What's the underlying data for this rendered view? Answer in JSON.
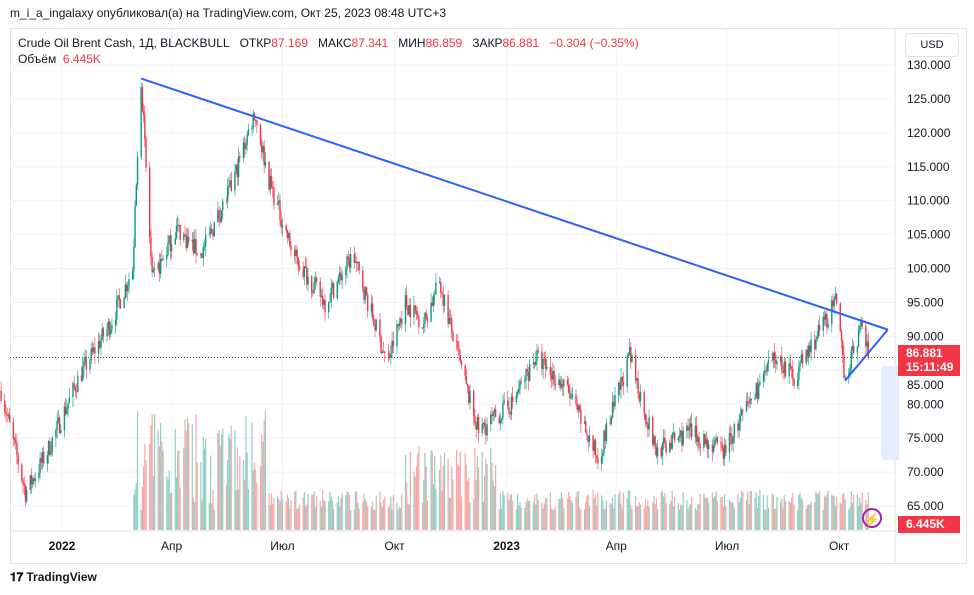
{
  "header": {
    "published": "m_i_a_ingalaxy опубликовал(а) на TradingView.com, Окт 25, 2023 08:48 UTC+3"
  },
  "legend": {
    "symbol": "Crude Oil Brent Cash, 1Д, BLACKBULL",
    "open_label": "ОТКР",
    "open": "87.169",
    "high_label": "МАКС",
    "high": "87.341",
    "low_label": "МИН",
    "low": "86.859",
    "close_label": "ЗАКР",
    "close": "86.881",
    "change": "−0.304 (−0.35%)",
    "volume_label": "Объём",
    "volume": "6.445K"
  },
  "currency": "USD",
  "price_label": {
    "price": "86.881",
    "countdown": "15:11:49"
  },
  "volume_label": "6.445K",
  "footer": {
    "brand": "TradingView"
  },
  "colors": {
    "up": "#089981",
    "down": "#f23645",
    "trend": "#2962ff",
    "vol_up": "#8fd0c5",
    "vol_down": "#f7a9a7"
  },
  "chart_data": {
    "type": "candlestick",
    "title": "Crude Oil Brent Cash, 1Д, BLACKBULL",
    "y_ticks": [
      "130.000",
      "125.000",
      "120.000",
      "115.000",
      "110.000",
      "105.000",
      "100.000",
      "95.000",
      "90.000",
      "85.000",
      "80.000",
      "75.000",
      "70.000",
      "65.000"
    ],
    "y_values": [
      130,
      125,
      120,
      115,
      110,
      105,
      100,
      95,
      90,
      85,
      80,
      75,
      70,
      65
    ],
    "ylim": [
      62.5,
      135
    ],
    "x_ticks": [
      {
        "label": "2022",
        "date": "2022-01-01"
      },
      {
        "label": "Апр",
        "date": "2022-04-01"
      },
      {
        "label": "Июл",
        "date": "2022-07-01"
      },
      {
        "label": "Окт",
        "date": "2022-10-01"
      },
      {
        "label": "2023",
        "date": "2023-01-01"
      },
      {
        "label": "Апр",
        "date": "2023-04-01"
      },
      {
        "label": "Июл",
        "date": "2023-07-01"
      },
      {
        "label": "Окт",
        "date": "2023-10-01"
      }
    ],
    "close_anchors": [
      [
        "2021-11-12",
        82
      ],
      [
        "2021-12-02",
        67
      ],
      [
        "2021-12-20",
        73
      ],
      [
        "2022-01-15",
        84
      ],
      [
        "2022-02-10",
        92
      ],
      [
        "2022-02-28",
        100
      ],
      [
        "2022-03-07",
        128
      ],
      [
        "2022-03-16",
        98
      ],
      [
        "2022-04-05",
        106
      ],
      [
        "2022-04-25",
        102
      ],
      [
        "2022-05-20",
        112
      ],
      [
        "2022-06-08",
        123
      ],
      [
        "2022-06-20",
        113
      ],
      [
        "2022-07-10",
        102
      ],
      [
        "2022-08-05",
        95
      ],
      [
        "2022-08-28",
        102
      ],
      [
        "2022-09-25",
        86
      ],
      [
        "2022-10-10",
        95
      ],
      [
        "2022-10-25",
        92
      ],
      [
        "2022-11-07",
        98
      ],
      [
        "2022-11-25",
        85
      ],
      [
        "2022-12-09",
        76
      ],
      [
        "2023-01-05",
        80
      ],
      [
        "2023-01-25",
        87
      ],
      [
        "2023-02-20",
        82
      ],
      [
        "2023-03-17",
        72
      ],
      [
        "2023-04-12",
        87
      ],
      [
        "2023-05-04",
        73
      ],
      [
        "2023-05-30",
        76
      ],
      [
        "2023-06-28",
        73
      ],
      [
        "2023-07-25",
        82
      ],
      [
        "2023-08-10",
        87
      ],
      [
        "2023-08-25",
        84
      ],
      [
        "2023-09-28",
        95
      ],
      [
        "2023-10-06",
        84
      ],
      [
        "2023-10-20",
        92
      ],
      [
        "2023-10-25",
        86.881
      ]
    ],
    "volume_start": "2022-03-01",
    "last_close": 86.881,
    "trendlines": [
      {
        "from": [
          "2022-03-07",
          128
        ],
        "to": [
          "2023-11-10",
          91
        ]
      },
      {
        "from": [
          "2023-10-06",
          83.5
        ],
        "to": [
          "2023-11-10",
          91
        ]
      }
    ]
  }
}
